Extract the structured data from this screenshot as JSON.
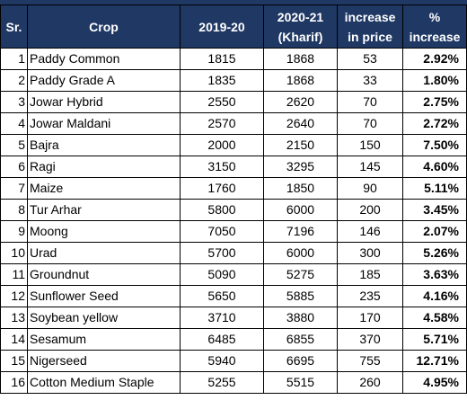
{
  "table": {
    "headers": {
      "sr": "Sr.",
      "crop": "Crop",
      "y1": "2019-20",
      "y2_line1": "2020-21",
      "y2_line2": "(Kharif)",
      "inc_line1": "increase",
      "inc_line2": "in price",
      "pct_line1": "%",
      "pct_line2": "increase"
    },
    "rows": [
      {
        "sr": "1",
        "crop": "Paddy Common",
        "y1": "1815",
        "y2": "1868",
        "inc": "53",
        "pct": "2.92%"
      },
      {
        "sr": "2",
        "crop": "Paddy Grade A",
        "y1": "1835",
        "y2": "1868",
        "inc": "33",
        "pct": "1.80%"
      },
      {
        "sr": "3",
        "crop": "Jowar Hybrid",
        "y1": "2550",
        "y2": "2620",
        "inc": "70",
        "pct": "2.75%"
      },
      {
        "sr": "4",
        "crop": "Jowar Maldani",
        "y1": "2570",
        "y2": "2640",
        "inc": "70",
        "pct": "2.72%"
      },
      {
        "sr": "5",
        "crop": "Bajra",
        "y1": "2000",
        "y2": "2150",
        "inc": "150",
        "pct": "7.50%"
      },
      {
        "sr": "6",
        "crop": "Ragi",
        "y1": "3150",
        "y2": "3295",
        "inc": "145",
        "pct": "4.60%"
      },
      {
        "sr": "7",
        "crop": "Maize",
        "y1": "1760",
        "y2": "1850",
        "inc": "90",
        "pct": "5.11%"
      },
      {
        "sr": "8",
        "crop": "Tur Arhar",
        "y1": "5800",
        "y2": "6000",
        "inc": "200",
        "pct": "3.45%"
      },
      {
        "sr": "9",
        "crop": "Moong",
        "y1": "7050",
        "y2": "7196",
        "inc": "146",
        "pct": "2.07%"
      },
      {
        "sr": "10",
        "crop": "Urad",
        "y1": "5700",
        "y2": "6000",
        "inc": "300",
        "pct": "5.26%"
      },
      {
        "sr": "11",
        "crop": "Groundnut",
        "y1": "5090",
        "y2": "5275",
        "inc": "185",
        "pct": "3.63%"
      },
      {
        "sr": "12",
        "crop": "Sunflower Seed",
        "y1": "5650",
        "y2": "5885",
        "inc": "235",
        "pct": "4.16%"
      },
      {
        "sr": "13",
        "crop": "Soybean yellow",
        "y1": "3710",
        "y2": "3880",
        "inc": "170",
        "pct": "4.58%"
      },
      {
        "sr": "14",
        "crop": "Sesamum",
        "y1": "6485",
        "y2": "6855",
        "inc": "370",
        "pct": "5.71%"
      },
      {
        "sr": "15",
        "crop": "Nigerseed",
        "y1": "5940",
        "y2": "6695",
        "inc": "755",
        "pct": "12.71%"
      },
      {
        "sr": "16",
        "crop": "Cotton Medium Staple",
        "y1": "5255",
        "y2": "5515",
        "inc": "260",
        "pct": "4.95%"
      }
    ]
  },
  "colors": {
    "header_bg": "#1f3864",
    "header_text": "#ffffff",
    "border": "#000000"
  }
}
